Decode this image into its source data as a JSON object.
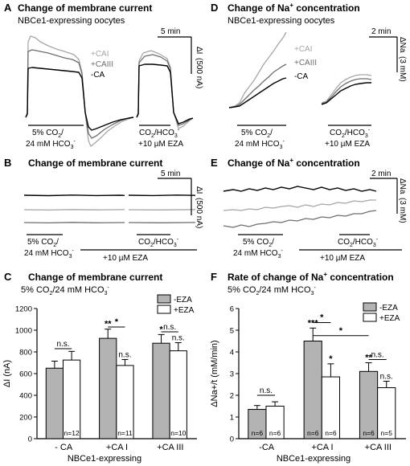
{
  "panels": {
    "A": {
      "letter": "A",
      "title": "Change of membrane current",
      "subtitle": "NBCe1-expressing oocytes",
      "legend": [
        "+CAI",
        "+CAIII",
        "-CA"
      ],
      "scale_time": "5 min",
      "scale_amp": "(500 nA)",
      "scale_sym": "ΔI",
      "stim1": [
        "5% CO",
        "/",
        "24 mM HCO",
        "-"
      ],
      "stim2": [
        "CO",
        "/HCO",
        "-",
        "+10 µM EZA"
      ]
    },
    "B": {
      "letter": "B",
      "title": "Change of membrane current",
      "scale_time": "5 min",
      "scale_amp": "(500 nA)",
      "scale_sym": "ΔI",
      "stim1": [
        "5% CO",
        "/",
        "24 mM HCO",
        "-"
      ],
      "stim2": [
        "CO",
        "/HCO",
        "-"
      ],
      "eza": "+10 µM EZA"
    },
    "C": {
      "letter": "C",
      "title": "Change of membrane current",
      "subtitle": [
        "5% CO",
        "/24 mM HCO",
        "-"
      ],
      "footer": "NBCe1-expressing"
    },
    "D": {
      "letter": "D",
      "title": [
        "Change of Na",
        "+",
        " concentration"
      ],
      "subtitle": "NBCe1-expressing oocytes",
      "legend": [
        "+CAI",
        "+CAIII",
        "-CA"
      ],
      "scale_time": "2 min",
      "scale_amp": "ΔNa",
      "scale_amp2": "(3 mM)",
      "stim1": [
        "5% CO",
        "/",
        "24 mM HCO",
        "-"
      ],
      "stim2": [
        "CO",
        "/HCO",
        "-",
        "+10 µM EZA"
      ]
    },
    "E": {
      "letter": "E",
      "title": [
        "Change of Na",
        "+",
        " concentration"
      ],
      "scale_time": "2 min",
      "scale_amp": "ΔNa",
      "scale_amp2": "(3 mM)",
      "stim1": [
        "5% CO",
        "/",
        "24 mM HCO",
        "-"
      ],
      "stim2": [
        "CO",
        "/HCO",
        "-"
      ],
      "eza": "+10 µM EZA"
    },
    "F": {
      "letter": "F",
      "title": [
        "Rate of change of Na",
        "+",
        " concentration"
      ],
      "subtitle": [
        "5% CO",
        "/24 mM HCO",
        "-"
      ],
      "footer": "NBCe1-expressing"
    }
  },
  "chart_data": [
    {
      "panel": "C",
      "type": "bar",
      "ylabel": "ΔI (nA)",
      "ylim": [
        0,
        1200
      ],
      "yticks": [
        0,
        200,
        400,
        600,
        800,
        1000,
        1200
      ],
      "categories": [
        "- CA",
        "+CA I",
        "+CA III"
      ],
      "legend": [
        "-EZA",
        "+EZA"
      ],
      "colors": {
        "-EZA": "#b3b3b3",
        "+EZA": "#ffffff"
      },
      "series": [
        {
          "name": "-EZA",
          "values": [
            650,
            925,
            880
          ],
          "errors": [
            65,
            85,
            80
          ],
          "n": [
            "",
            "",
            ""
          ],
          "stars": [
            "",
            "**",
            "*"
          ]
        },
        {
          "name": "+EZA",
          "values": [
            725,
            675,
            810
          ],
          "errors": [
            80,
            55,
            75
          ],
          "n": [
            "n=12",
            "n=11",
            "n=10"
          ],
          "stars": [
            "",
            "n.s.",
            "n.s."
          ]
        }
      ],
      "brackets": [
        {
          "label": "n.s.",
          "from": [
            0,
            0
          ],
          "to": [
            0,
            1
          ],
          "y": 830
        },
        {
          "label": "*",
          "from": [
            1,
            0
          ],
          "to": [
            1,
            1
          ],
          "y": 1030
        },
        {
          "label": "n.s.",
          "from": [
            2,
            0
          ],
          "to": [
            2,
            1
          ],
          "y": 985
        }
      ]
    },
    {
      "panel": "F",
      "type": "bar",
      "ylabel": "ΔNa+/t (mM/min)",
      "ylim": [
        0,
        6
      ],
      "yticks": [
        0,
        1,
        2,
        3,
        4,
        5,
        6
      ],
      "categories": [
        "-CA",
        "+CA I",
        "+CA III"
      ],
      "legend": [
        "-EZA",
        "+EZA"
      ],
      "colors": {
        "-EZA": "#b3b3b3",
        "+EZA": "#ffffff"
      },
      "series": [
        {
          "name": "-EZA",
          "values": [
            1.35,
            4.5,
            3.1
          ],
          "errors": [
            0.18,
            0.6,
            0.4
          ],
          "n": [
            "n=6",
            "n=6",
            "n=6"
          ],
          "stars": [
            "",
            "***",
            "**"
          ]
        },
        {
          "name": "+EZA",
          "values": [
            1.5,
            2.85,
            2.35
          ],
          "errors": [
            0.2,
            0.6,
            0.3
          ],
          "n": [
            "n=6",
            "n=6",
            "n=5"
          ],
          "stars": [
            "",
            "*",
            "n.s."
          ]
        }
      ],
      "brackets": [
        {
          "label": "n.s.",
          "from": [
            0,
            0
          ],
          "to": [
            0,
            1
          ],
          "y": 2.0
        },
        {
          "label": "*",
          "from": [
            1,
            0
          ],
          "to": [
            1,
            1
          ],
          "y": 5.35
        },
        {
          "label": "*",
          "from": [
            1,
            0
          ],
          "to": [
            2,
            0
          ],
          "y": 4.75
        },
        {
          "label": "n.s.",
          "from": [
            2,
            0
          ],
          "to": [
            2,
            1
          ],
          "y": 3.65
        }
      ]
    }
  ]
}
